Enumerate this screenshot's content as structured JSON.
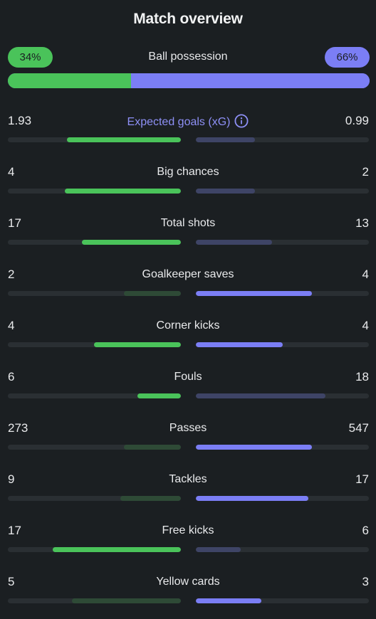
{
  "header": {
    "title": "Match overview"
  },
  "colors": {
    "home_strong": "#4ac35a",
    "home_weak": "#2e4a36",
    "away_strong": "#7b7ef5",
    "away_weak": "#3e4466",
    "track": "#2a2f33"
  },
  "possession": {
    "label": "Ball possession",
    "home": "34%",
    "away": "66%",
    "home_fraction": 0.34,
    "away_fraction": 0.66
  },
  "stats": [
    {
      "label": "Expected goals (xG)",
      "home": "1.93",
      "away": "0.99",
      "home_fill": 0.66,
      "away_fill": 0.34,
      "leader": "home",
      "info_icon": "info-icon"
    },
    {
      "label": "Big chances",
      "home": "4",
      "away": "2",
      "home_fill": 0.67,
      "away_fill": 0.34,
      "leader": "home"
    },
    {
      "label": "Total shots",
      "home": "17",
      "away": "13",
      "home_fill": 0.57,
      "away_fill": 0.44,
      "leader": "home"
    },
    {
      "label": "Goalkeeper saves",
      "home": "2",
      "away": "4",
      "home_fill": 0.33,
      "away_fill": 0.67,
      "leader": "away"
    },
    {
      "label": "Corner kicks",
      "home": "4",
      "away": "4",
      "home_fill": 0.5,
      "away_fill": 0.5,
      "leader": "both"
    },
    {
      "label": "Fouls",
      "home": "6",
      "away": "18",
      "home_fill": 0.25,
      "away_fill": 0.75,
      "leader": "home"
    },
    {
      "label": "Passes",
      "home": "273",
      "away": "547",
      "home_fill": 0.33,
      "away_fill": 0.67,
      "leader": "away"
    },
    {
      "label": "Tackles",
      "home": "9",
      "away": "17",
      "home_fill": 0.35,
      "away_fill": 0.65,
      "leader": "away"
    },
    {
      "label": "Free kicks",
      "home": "17",
      "away": "6",
      "home_fill": 0.74,
      "away_fill": 0.26,
      "leader": "home"
    },
    {
      "label": "Yellow cards",
      "home": "5",
      "away": "3",
      "home_fill": 0.63,
      "away_fill": 0.38,
      "leader": "away"
    }
  ]
}
